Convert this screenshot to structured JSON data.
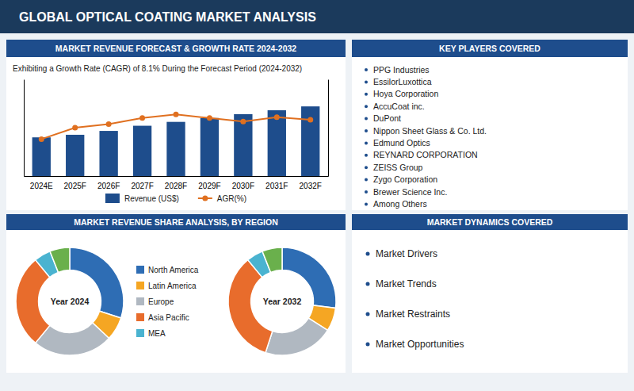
{
  "title": "GLOBAL OPTICAL COATING MARKET ANALYSIS",
  "chart_data": [
    {
      "type": "bar",
      "title": "MARKET REVENUE FORECAST & GROWTH RATE 2024-2032",
      "subtitle": "Exhibiting a Growth Rate (CAGR) of 8.1% During the Forecast Period (2024-2032)",
      "categories": [
        "2024E",
        "2025F",
        "2026F",
        "2027F",
        "2028F",
        "2029F",
        "2030F",
        "2031F",
        "2032F"
      ],
      "series": [
        {
          "name": "Revenue (US$)",
          "type": "bar",
          "color": "#1e4d8c",
          "values": [
            3.0,
            3.2,
            3.5,
            3.9,
            4.2,
            4.5,
            4.8,
            5.1,
            5.4
          ]
        },
        {
          "name": "AGR(%)",
          "type": "line",
          "color": "#e07020",
          "marker": "circle",
          "axis": "y2",
          "values": [
            4.2,
            5.5,
            5.9,
            6.6,
            7.0,
            6.6,
            6.2,
            6.7,
            6.4
          ]
        }
      ],
      "ylim": [
        0,
        7.5
      ],
      "y2lim": [
        0,
        11
      ],
      "tick_labels": "x",
      "legend": "bottom"
    },
    {
      "type": "pie",
      "title": "MARKET REVENUE SHARE ANALYSIS, BY REGION",
      "categories": [
        "North America",
        "Latin America",
        "Europe",
        "Asia Pacific",
        "MEA",
        null
      ],
      "colors": [
        "#2e6db4",
        "#f5a623",
        "#b0b8c1",
        "#e86c2c",
        "#4ab3d0",
        "#6ab04c"
      ],
      "series": [
        {
          "name": "Year 2024",
          "values": [
            30,
            7,
            24,
            28,
            5,
            6
          ]
        },
        {
          "name": "Year 2032",
          "values": [
            27,
            7,
            21,
            34,
            5,
            6
          ]
        }
      ],
      "legend": "center"
    }
  ],
  "panels": [
    {
      "title": "KEY PLAYERS COVERED",
      "items": [
        "PPG Industries",
        "EssilorLuxottica",
        "Hoya Corporation",
        "AccuCoat inc.",
        "DuPont",
        "Nippon Sheet Glass & Co. Ltd.",
        "Edmund Optics",
        "REYNARD CORPORATION",
        "ZEISS Group",
        "Zygo Corporation",
        "Brewer Science Inc.",
        "Among Others"
      ]
    },
    {
      "title": "MARKET DYNAMICS COVERED",
      "items": [
        "Market Drivers",
        "Market Trends",
        "Market Restraints",
        "Market Opportunities"
      ]
    }
  ]
}
